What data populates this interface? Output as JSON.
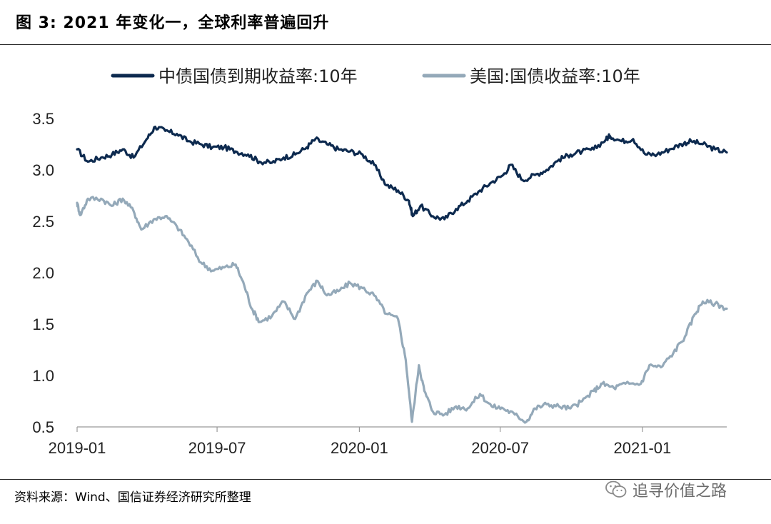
{
  "title": {
    "label": "图  3:  2021 年变化一，全球利率普遍回升"
  },
  "source": {
    "text": "资料来源：Wind、国信证券经济研究所整理"
  },
  "watermark": {
    "text": "追寻价值之路",
    "icon": "wechat-icon"
  },
  "chart_data": {
    "type": "line",
    "title": "",
    "xlabel": "",
    "ylabel": "",
    "ylim": [
      0.5,
      3.5
    ],
    "xlim": [
      "2019-01-01",
      "2021-04-20"
    ],
    "yticks": [
      0.5,
      1.0,
      1.5,
      2.0,
      2.5,
      3.0,
      3.5
    ],
    "ytick_labels": [
      "0.5",
      "1.0",
      "1.5",
      "2.0",
      "2.5",
      "3.0",
      "3.5"
    ],
    "xticks": [
      "2019-01-01",
      "2019-07-01",
      "2020-01-01",
      "2020-07-01",
      "2021-01-01"
    ],
    "xtick_labels": [
      "2019-01",
      "2019-07",
      "2020-01",
      "2020-07",
      "2021-01"
    ],
    "grid": false,
    "legend_position": "top",
    "series": [
      {
        "name": "中债国债到期收益率:10年",
        "color": "#0d2a4f",
        "x": [
          "2019-01-01",
          "2019-01-15",
          "2019-02-01",
          "2019-02-15",
          "2019-03-01",
          "2019-03-15",
          "2019-04-01",
          "2019-04-12",
          "2019-04-25",
          "2019-05-10",
          "2019-05-25",
          "2019-06-10",
          "2019-06-25",
          "2019-07-10",
          "2019-07-25",
          "2019-08-10",
          "2019-08-25",
          "2019-09-10",
          "2019-09-25",
          "2019-10-10",
          "2019-10-25",
          "2019-11-05",
          "2019-11-20",
          "2019-12-05",
          "2019-12-20",
          "2020-01-05",
          "2020-01-20",
          "2020-02-05",
          "2020-02-20",
          "2020-03-05",
          "2020-03-10",
          "2020-03-20",
          "2020-04-05",
          "2020-04-20",
          "2020-05-05",
          "2020-05-20",
          "2020-06-05",
          "2020-06-20",
          "2020-07-05",
          "2020-07-15",
          "2020-07-30",
          "2020-08-15",
          "2020-08-30",
          "2020-09-15",
          "2020-09-30",
          "2020-10-15",
          "2020-10-30",
          "2020-11-15",
          "2020-11-20",
          "2020-12-05",
          "2020-12-20",
          "2021-01-05",
          "2021-01-20",
          "2021-02-05",
          "2021-02-20",
          "2021-03-05",
          "2021-03-20",
          "2021-04-05",
          "2021-04-20"
        ],
        "values": [
          3.2,
          3.08,
          3.12,
          3.15,
          3.2,
          3.12,
          3.3,
          3.42,
          3.38,
          3.35,
          3.28,
          3.25,
          3.22,
          3.22,
          3.18,
          3.15,
          3.08,
          3.07,
          3.12,
          3.15,
          3.22,
          3.3,
          3.25,
          3.2,
          3.18,
          3.15,
          3.05,
          2.85,
          2.8,
          2.7,
          2.55,
          2.65,
          2.55,
          2.52,
          2.62,
          2.7,
          2.8,
          2.88,
          2.95,
          3.05,
          2.9,
          2.95,
          3.0,
          3.1,
          3.15,
          3.18,
          3.2,
          3.3,
          3.33,
          3.28,
          3.3,
          3.15,
          3.15,
          3.2,
          3.25,
          3.28,
          3.25,
          3.2,
          3.17
        ]
      },
      {
        "name": "美国:国债收益率:10年",
        "color": "#94a9b9",
        "x": [
          "2019-01-01",
          "2019-01-05",
          "2019-01-15",
          "2019-02-01",
          "2019-02-15",
          "2019-03-01",
          "2019-03-15",
          "2019-03-25",
          "2019-04-10",
          "2019-04-25",
          "2019-05-10",
          "2019-05-25",
          "2019-06-10",
          "2019-06-25",
          "2019-07-10",
          "2019-07-25",
          "2019-08-05",
          "2019-08-15",
          "2019-08-25",
          "2019-09-10",
          "2019-09-25",
          "2019-10-10",
          "2019-10-25",
          "2019-11-08",
          "2019-11-20",
          "2019-12-05",
          "2019-12-20",
          "2020-01-05",
          "2020-01-20",
          "2020-02-05",
          "2020-02-20",
          "2020-03-01",
          "2020-03-09",
          "2020-03-18",
          "2020-03-25",
          "2020-04-05",
          "2020-04-20",
          "2020-05-05",
          "2020-05-20",
          "2020-06-05",
          "2020-06-20",
          "2020-07-05",
          "2020-07-20",
          "2020-08-04",
          "2020-08-15",
          "2020-08-30",
          "2020-09-15",
          "2020-09-30",
          "2020-10-15",
          "2020-10-30",
          "2020-11-10",
          "2020-11-25",
          "2020-12-10",
          "2020-12-30",
          "2021-01-10",
          "2021-01-25",
          "2021-02-10",
          "2021-02-25",
          "2021-03-10",
          "2021-03-20",
          "2021-04-05",
          "2021-04-20"
        ],
        "values": [
          2.68,
          2.56,
          2.72,
          2.72,
          2.65,
          2.72,
          2.6,
          2.42,
          2.52,
          2.55,
          2.45,
          2.3,
          2.1,
          2.02,
          2.05,
          2.08,
          1.88,
          1.65,
          1.52,
          1.58,
          1.72,
          1.55,
          1.8,
          1.92,
          1.78,
          1.82,
          1.9,
          1.85,
          1.78,
          1.6,
          1.55,
          1.15,
          0.55,
          1.1,
          0.85,
          0.65,
          0.62,
          0.7,
          0.68,
          0.82,
          0.7,
          0.68,
          0.62,
          0.55,
          0.68,
          0.72,
          0.7,
          0.68,
          0.75,
          0.85,
          0.92,
          0.88,
          0.92,
          0.92,
          1.1,
          1.08,
          1.22,
          1.38,
          1.6,
          1.72,
          1.7,
          1.65
        ]
      }
    ]
  }
}
